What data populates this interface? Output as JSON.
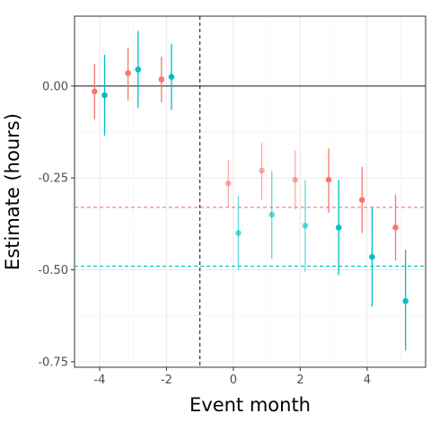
{
  "chart_data": {
    "type": "scatter",
    "title": "",
    "xlabel": "Event month",
    "ylabel": "Estimate (hours)",
    "xlim": [
      -4.75,
      5.75
    ],
    "ylim": [
      -0.765,
      0.19
    ],
    "x_ticks": [
      -4,
      -2,
      0,
      2,
      4
    ],
    "x_tick_labels": [
      "-4",
      "-2",
      "0",
      "2",
      "4"
    ],
    "y_ticks": [
      0,
      -0.25,
      -0.5,
      -0.75
    ],
    "y_tick_labels": [
      "0.00",
      "-0.25",
      "-0.50",
      "-0.75"
    ],
    "grid": true,
    "reference_lines": {
      "horizontal_zero": 0,
      "vertical_dashed": -1,
      "horizontal_dashed": [
        {
          "y": -0.33,
          "color": "#F8766D"
        },
        {
          "y": -0.49,
          "color": "#00BFC4"
        }
      ]
    },
    "series": [
      {
        "color": "#F8766D",
        "points": [
          {
            "x": -4.15,
            "y": -0.015,
            "lo": -0.09,
            "hi": 0.06,
            "faded": false
          },
          {
            "x": -3.15,
            "y": 0.035,
            "lo": -0.04,
            "hi": 0.105,
            "faded": false
          },
          {
            "x": -2.15,
            "y": 0.018,
            "lo": -0.045,
            "hi": 0.08,
            "faded": false
          },
          {
            "x": -0.15,
            "y": -0.265,
            "lo": -0.33,
            "hi": -0.2,
            "faded": true
          },
          {
            "x": 0.85,
            "y": -0.23,
            "lo": -0.31,
            "hi": -0.155,
            "faded": true
          },
          {
            "x": 1.85,
            "y": -0.255,
            "lo": -0.335,
            "hi": -0.175,
            "faded": true
          },
          {
            "x": 2.85,
            "y": -0.255,
            "lo": -0.345,
            "hi": -0.17,
            "faded": false
          },
          {
            "x": 3.85,
            "y": -0.31,
            "lo": -0.4,
            "hi": -0.22,
            "faded": false
          },
          {
            "x": 4.85,
            "y": -0.385,
            "lo": -0.475,
            "hi": -0.295,
            "faded": false
          }
        ]
      },
      {
        "color": "#00BFC4",
        "points": [
          {
            "x": -3.85,
            "y": -0.025,
            "lo": -0.135,
            "hi": 0.085,
            "faded": false
          },
          {
            "x": -2.85,
            "y": 0.045,
            "lo": -0.06,
            "hi": 0.15,
            "faded": false
          },
          {
            "x": -1.85,
            "y": 0.025,
            "lo": -0.065,
            "hi": 0.115,
            "faded": false
          },
          {
            "x": 0.15,
            "y": -0.4,
            "lo": -0.5,
            "hi": -0.3,
            "faded": true
          },
          {
            "x": 1.15,
            "y": -0.35,
            "lo": -0.47,
            "hi": -0.23,
            "faded": true
          },
          {
            "x": 2.15,
            "y": -0.38,
            "lo": -0.505,
            "hi": -0.255,
            "faded": true
          },
          {
            "x": 3.15,
            "y": -0.385,
            "lo": -0.515,
            "hi": -0.255,
            "faded": false
          },
          {
            "x": 4.15,
            "y": -0.465,
            "lo": -0.6,
            "hi": -0.33,
            "faded": false
          },
          {
            "x": 5.15,
            "y": -0.585,
            "lo": -0.72,
            "hi": -0.445,
            "faded": false
          }
        ]
      }
    ]
  }
}
